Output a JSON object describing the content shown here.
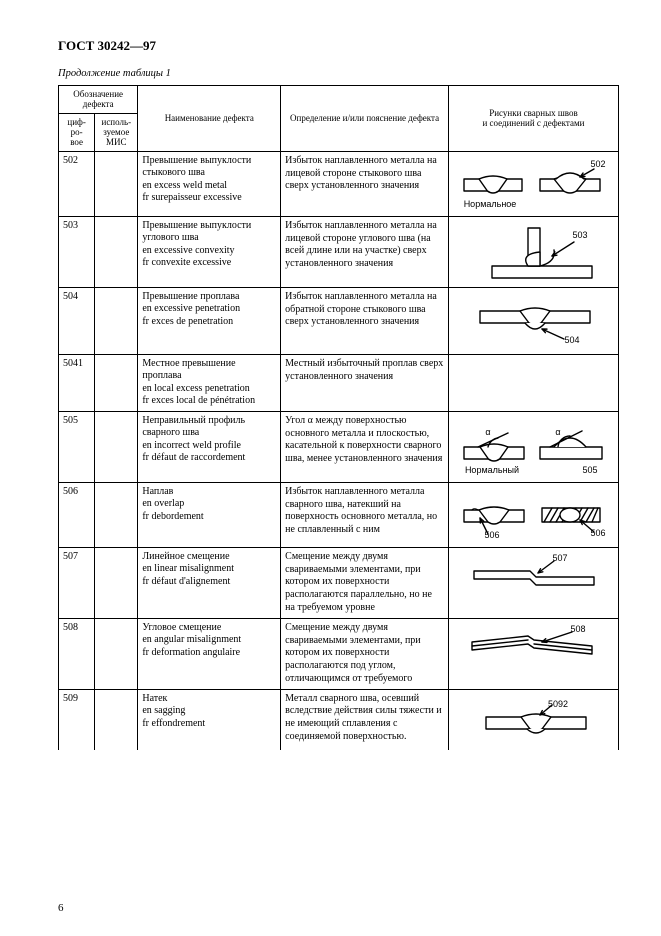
{
  "header": {
    "doc_title": "ГОСТ 30242—97",
    "continuation": "Продолжение таблицы 1",
    "page_number": "6"
  },
  "table": {
    "head": {
      "designation_group": "Обозначение дефекта",
      "code_num": "циф-\nро-\nвое",
      "code_mis": "исполь-\nзуемое\nМИС",
      "name": "Наименование дефекта",
      "definition": "Определение и/или пояснение дефекта",
      "figures": "Рисунки сварных швов\nи соединений с дефектами"
    },
    "rows": [
      {
        "code": "502",
        "name": "Превышение выпуклости стыкового шва\nen excess weld metal\nfr surepaisseur excessive",
        "def": "Избыток наплавленного металла на лицевой стороне стыкового шва сверх установленного значения",
        "fig": {
          "type": "502",
          "labels": [
            "Нормальное",
            "502"
          ]
        }
      },
      {
        "code": "503",
        "name": "Превышение выпуклости углового шва\nen excessive convexity\nfr convexite excessive",
        "def": "Избыток наплавленного металла на лицевой стороне углового шва (на всей длине или на участке) сверх установленного значения",
        "fig": {
          "type": "503",
          "labels": [
            "503"
          ]
        }
      },
      {
        "code": "504",
        "name": "Превышение проплава\nen excessive penetration\nfr exces de penetration",
        "def": "Избыток наплавленного металла на обратной стороне стыкового шва сверх установленного значения",
        "fig": {
          "type": "504",
          "labels": [
            "504"
          ]
        }
      },
      {
        "code": "5041",
        "name": "Местное превышение проплава\nen local excess penetration\nfr exces local de pénétration",
        "def": "Местный избыточный проплав сверх установленного значения",
        "fig": {
          "type": "none"
        }
      },
      {
        "code": "505",
        "name": "Неправильный профиль сварного шва\nen incorrect weld profile\nfr défaut de raccordement",
        "def": "Угол α между поверхностью основного металла и плоскостью, касательной к поверхности сварного шва, менее установленного значения",
        "fig": {
          "type": "505",
          "labels": [
            "Нормальный",
            "505",
            "α",
            "α"
          ]
        }
      },
      {
        "code": "506",
        "name": "Наплав\nen overlap\nfr debordement",
        "def": "Избыток наплавленного металла сварного шва, натекший на поверхность основного металла, но не сплавленный с ним",
        "fig": {
          "type": "506",
          "labels": [
            "506",
            "506"
          ]
        }
      },
      {
        "code": "507",
        "name": "Линейное смещение\nen linear misalignment\nfr défaut d'alignement",
        "def": "Смещение между двумя свариваемыми элементами, при котором их поверхности располагаются параллельно, но не на требуемом уровне",
        "fig": {
          "type": "507",
          "labels": [
            "507"
          ]
        }
      },
      {
        "code": "508",
        "name": "Угловое смещение\nen angular misalignment\nfr deformation angulaire",
        "def": "Смещение между двумя свариваемыми элементами, при котором их поверхности располагаются под углом, отличающимся от требуемого",
        "fig": {
          "type": "508",
          "labels": [
            "508"
          ]
        }
      },
      {
        "code": "509",
        "name": "Натек\nen sagging\nfr effondrement",
        "def": "Металл сварного шва, осевший вследствие действия силы тяжести и не имеющий сплавления с соединяемой поверхностью.",
        "fig": {
          "type": "509",
          "labels": [
            "5092"
          ]
        }
      }
    ]
  },
  "style": {
    "stroke": "#000000",
    "stroke_width": 1.4,
    "fill": "#ffffff",
    "font": "Arial, sans-serif",
    "label_size": 9
  }
}
